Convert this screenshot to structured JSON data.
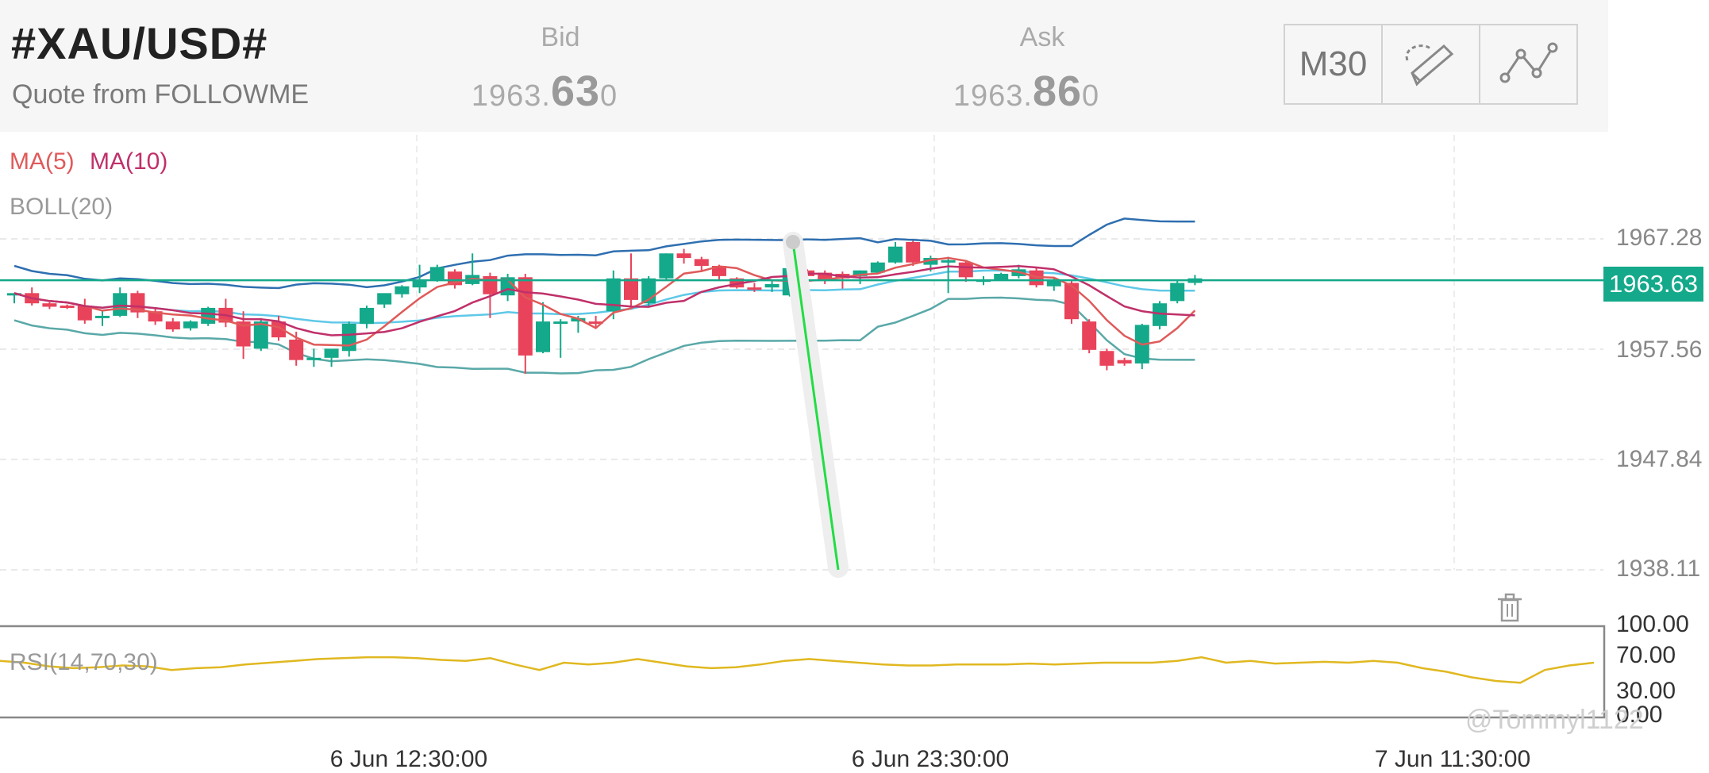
{
  "header": {
    "symbol": "#XAU/USD#",
    "subtitle": "Quote from FOLLOWME",
    "bid_label": "Bid",
    "bid_prefix": "1963.",
    "bid_big": "63",
    "bid_suffix": "0",
    "ask_label": "Ask",
    "ask_prefix": "1963.",
    "ask_big": "86",
    "ask_suffix": "0",
    "timeframe": "M30"
  },
  "legend": {
    "ma5": "MA(5)",
    "ma10": "MA(10)",
    "boll": "BOLL(20)",
    "rsi": "RSI(14,70,30)"
  },
  "watermark": "@Tommyl1122",
  "colors": {
    "up": "#14a98a",
    "down": "#e8435a",
    "ma5": "#e05a5a",
    "ma10": "#c0306a",
    "boll_upper": "#2f6fb0",
    "boll_mid": "#5ec8e8",
    "boll_lower": "#5aa8a8",
    "rsi": "#e0b820",
    "trendline": "#22dd44",
    "last_price_line": "#14a98a"
  },
  "chart_data": {
    "type": "candlestick",
    "symbol": "#XAU/USD#",
    "timeframe": "M30",
    "price_ticks": [
      "1967.28",
      "1957.56",
      "1947.84",
      "1938.11"
    ],
    "price_tick_values": [
      1967.28,
      1957.56,
      1947.84,
      1938.11
    ],
    "ylim": [
      1938.11,
      1967.28
    ],
    "last_price": "1963.63",
    "last_price_value": 1963.63,
    "time_labels": [
      "6 Jun 12:30:00",
      "6 Jun 23:30:00",
      "7 Jun 11:30:00"
    ],
    "candles": [
      [
        1962.3,
        1962.5,
        1961.6,
        1962.5
      ],
      [
        1962.5,
        1963.0,
        1961.4,
        1961.6
      ],
      [
        1961.6,
        1961.7,
        1961.1,
        1961.3
      ],
      [
        1961.4,
        1961.5,
        1961.1,
        1961.3
      ],
      [
        1961.4,
        1962.0,
        1959.8,
        1960.1
      ],
      [
        1960.3,
        1961.0,
        1959.6,
        1960.5
      ],
      [
        1960.5,
        1963.0,
        1960.4,
        1962.5
      ],
      [
        1962.5,
        1962.7,
        1960.3,
        1960.8
      ],
      [
        1960.9,
        1961.2,
        1959.7,
        1960.0
      ],
      [
        1960.0,
        1960.3,
        1959.1,
        1959.3
      ],
      [
        1959.4,
        1960.1,
        1959.2,
        1960.0
      ],
      [
        1959.8,
        1961.3,
        1959.6,
        1961.2
      ],
      [
        1961.2,
        1962.0,
        1959.5,
        1959.9
      ],
      [
        1960.0,
        1960.9,
        1956.7,
        1957.8
      ],
      [
        1957.6,
        1960.3,
        1957.4,
        1960.0
      ],
      [
        1960.0,
        1960.5,
        1958.3,
        1958.6
      ],
      [
        1958.4,
        1959.1,
        1956.1,
        1956.6
      ],
      [
        1956.7,
        1957.6,
        1956.0,
        1956.8
      ],
      [
        1956.8,
        1957.5,
        1956.0,
        1957.6
      ],
      [
        1957.4,
        1960.0,
        1956.9,
        1959.8
      ],
      [
        1959.8,
        1961.4,
        1959.4,
        1961.2
      ],
      [
        1961.5,
        1962.4,
        1961.2,
        1962.5
      ],
      [
        1962.4,
        1963.2,
        1962.1,
        1963.1
      ],
      [
        1963.0,
        1965.0,
        1962.5,
        1963.6
      ],
      [
        1963.6,
        1965.0,
        1963.5,
        1964.8
      ],
      [
        1964.4,
        1964.6,
        1962.9,
        1963.2
      ],
      [
        1963.3,
        1966.0,
        1963.2,
        1964.1
      ],
      [
        1964.0,
        1964.3,
        1960.3,
        1962.4
      ],
      [
        1962.3,
        1964.2,
        1961.8,
        1963.9
      ],
      [
        1963.9,
        1964.2,
        1955.4,
        1957.0
      ],
      [
        1957.3,
        1961.7,
        1957.2,
        1960.0
      ],
      [
        1960.0,
        1960.2,
        1956.8,
        1960.0
      ],
      [
        1960.0,
        1960.5,
        1959.0,
        1960.3
      ],
      [
        1960.0,
        1960.5,
        1959.4,
        1959.8
      ],
      [
        1960.9,
        1964.5,
        1960.2,
        1963.8
      ],
      [
        1963.8,
        1966.0,
        1961.1,
        1961.9
      ],
      [
        1961.6,
        1964.0,
        1961.3,
        1963.8
      ],
      [
        1963.8,
        1966.0,
        1963.6,
        1966.0
      ],
      [
        1966.0,
        1966.4,
        1965.1,
        1965.6
      ],
      [
        1965.5,
        1965.7,
        1964.4,
        1964.9
      ],
      [
        1964.9,
        1965.0,
        1963.6,
        1964.0
      ],
      [
        1963.8,
        1963.9,
        1962.9,
        1963.0
      ],
      [
        1963.0,
        1963.4,
        1962.6,
        1962.9
      ],
      [
        1963.0,
        1963.6,
        1962.6,
        1963.3
      ],
      [
        1962.3,
        1965.0,
        1962.2,
        1964.7
      ],
      [
        1964.5,
        1964.6,
        1963.4,
        1964.0
      ],
      [
        1964.3,
        1964.5,
        1963.3,
        1963.6
      ],
      [
        1964.2,
        1964.4,
        1962.9,
        1963.8
      ],
      [
        1964.0,
        1964.5,
        1963.3,
        1964.5
      ],
      [
        1964.3,
        1965.3,
        1964.2,
        1965.2
      ],
      [
        1965.2,
        1967.0,
        1965.1,
        1966.6
      ],
      [
        1967.0,
        1967.1,
        1964.9,
        1965.2
      ],
      [
        1965.0,
        1965.8,
        1964.4,
        1965.6
      ],
      [
        1965.2,
        1965.7,
        1962.5,
        1965.4
      ],
      [
        1965.2,
        1965.4,
        1963.5,
        1963.9
      ],
      [
        1963.5,
        1964.0,
        1963.2,
        1963.7
      ],
      [
        1963.7,
        1964.3,
        1963.6,
        1964.2
      ],
      [
        1964.0,
        1965.0,
        1963.8,
        1964.6
      ],
      [
        1964.5,
        1964.8,
        1963.0,
        1963.2
      ],
      [
        1963.1,
        1963.8,
        1962.7,
        1963.6
      ],
      [
        1963.4,
        1963.7,
        1959.8,
        1960.2
      ],
      [
        1960.0,
        1960.2,
        1957.2,
        1957.5
      ],
      [
        1957.4,
        1957.6,
        1955.7,
        1956.1
      ],
      [
        1956.6,
        1956.8,
        1956.1,
        1956.3
      ],
      [
        1956.3,
        1959.8,
        1955.8,
        1959.7
      ],
      [
        1959.6,
        1961.8,
        1959.3,
        1961.6
      ],
      [
        1961.8,
        1963.7,
        1961.6,
        1963.4
      ],
      [
        1963.4,
        1964.1,
        1963.2,
        1963.8
      ]
    ],
    "series": [
      {
        "name": "MA(5)"
      },
      {
        "name": "MA(10)"
      },
      {
        "name": "BOLL(20)"
      }
    ],
    "rsi": {
      "name": "RSI(14,70,30)",
      "ticks": [
        "100.00",
        "70.00",
        "30.00",
        "0.00"
      ],
      "tick_values": [
        100,
        70,
        30,
        0
      ],
      "values": [
        62,
        60,
        56,
        54,
        55,
        57,
        56,
        52,
        54,
        55,
        58,
        60,
        62,
        64,
        65,
        66,
        66,
        65,
        63,
        62,
        65,
        58,
        52,
        60,
        58,
        60,
        64,
        60,
        56,
        54,
        55,
        58,
        62,
        64,
        62,
        60,
        58,
        57,
        57,
        58,
        58,
        58,
        59,
        58,
        59,
        60,
        60,
        60,
        62,
        66,
        60,
        62,
        59,
        60,
        61,
        60,
        62,
        60,
        54,
        50,
        44,
        40,
        38,
        52,
        57,
        60
      ]
    }
  }
}
